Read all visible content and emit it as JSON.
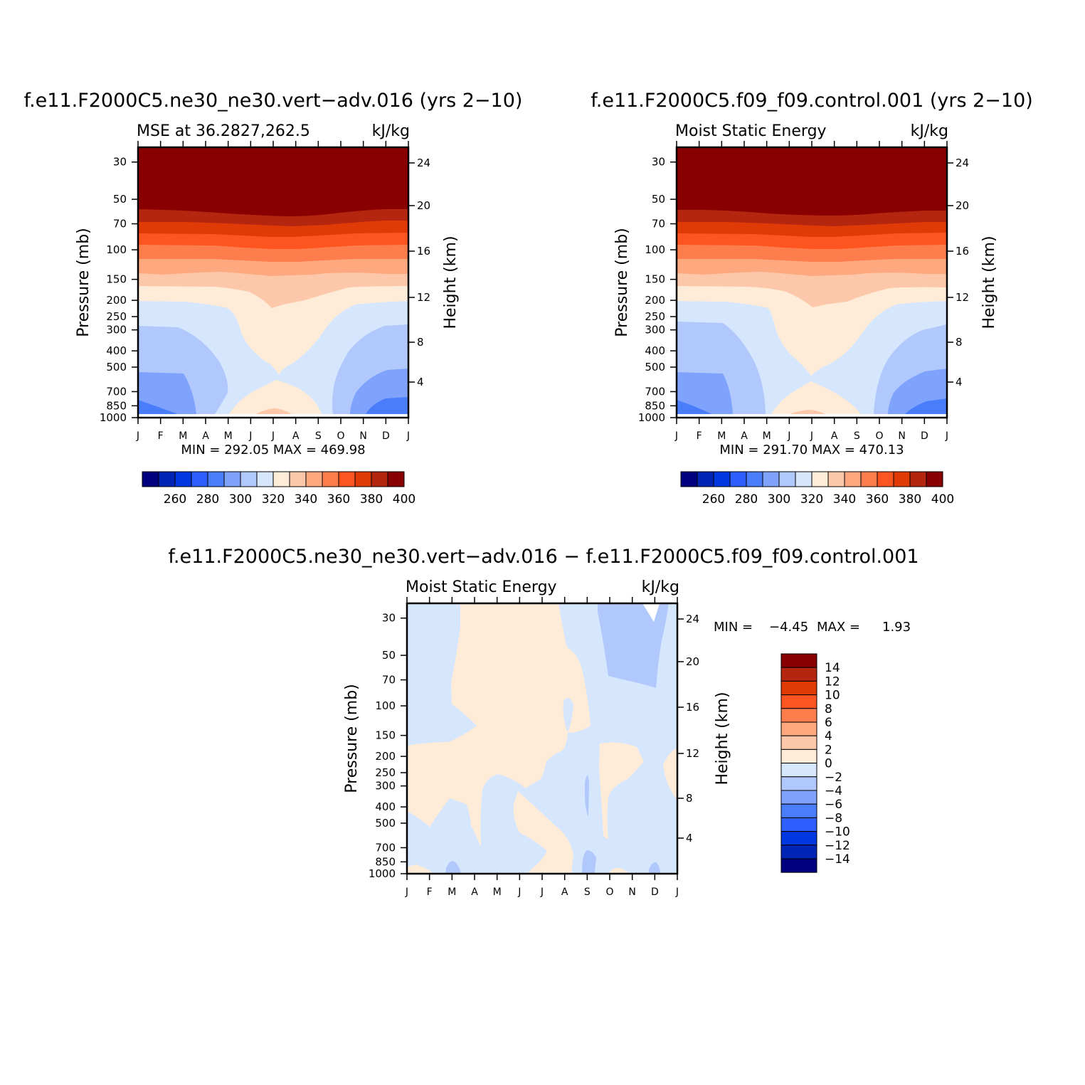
{
  "palettes": {
    "mse": [
      "#00007f",
      "#0024b4",
      "#0038e0",
      "#2d5fff",
      "#4a7dfc",
      "#7fa3fc",
      "#b0c8fc",
      "#d6e7fd",
      "#feebd8",
      "#fdc8aa",
      "#fda87f",
      "#fd7d4d",
      "#fd5420",
      "#e03a07",
      "#b52610",
      "#880000"
    ],
    "diff": [
      "#880000",
      "#b52610",
      "#e03a07",
      "#fd5420",
      "#fd7d4d",
      "#fda87f",
      "#fdc8aa",
      "#feebd8",
      "#d6e7fd",
      "#b0c8fc",
      "#7fa3fc",
      "#4a7dfc",
      "#2d5fff",
      "#0038e0",
      "#0024b4",
      "#00007f"
    ]
  },
  "months": [
    "J",
    "F",
    "M",
    "A",
    "M",
    "J",
    "J",
    "A",
    "S",
    "O",
    "N",
    "D",
    "J"
  ],
  "chart_data": [
    {
      "type": "heatmap",
      "title": "f.e11.F2000C5.ne30_ne30.vert−adv.016 (yrs 2−10)",
      "subtitle_left": "MSE at 36.2827,262.5",
      "subtitle_right": "kJ/kg",
      "ylabel": "Pressure (mb)",
      "ylabel_right": "Height (km)",
      "pressure_ticks": [
        "30",
        "50",
        "70",
        "100",
        "150",
        "200",
        "250",
        "300",
        "400",
        "500",
        "700",
        "850",
        "1000"
      ],
      "height_ticks": [
        "24",
        "20",
        "16",
        "12",
        "8",
        "4"
      ],
      "stats": "MIN = 292.05 MAX = 469.98",
      "colorbar_labels": [
        "260",
        "280",
        "300",
        "320",
        "340",
        "360",
        "380",
        "400"
      ],
      "levels": [
        250,
        260,
        270,
        280,
        290,
        300,
        310,
        320,
        330,
        340,
        350,
        360,
        370,
        380,
        390,
        400
      ]
    },
    {
      "type": "heatmap",
      "title": "f.e11.F2000C5.f09_f09.control.001 (yrs 2−10)",
      "subtitle_left": "Moist Static Energy",
      "subtitle_right": "kJ/kg",
      "ylabel": "Pressure (mb)",
      "ylabel_right": "Height (km)",
      "pressure_ticks": [
        "30",
        "50",
        "70",
        "100",
        "150",
        "200",
        "250",
        "300",
        "400",
        "500",
        "700",
        "850",
        "1000"
      ],
      "height_ticks": [
        "24",
        "20",
        "16",
        "12",
        "8",
        "4"
      ],
      "stats": "MIN = 291.70 MAX = 470.13",
      "colorbar_labels": [
        "260",
        "280",
        "300",
        "320",
        "340",
        "360",
        "380",
        "400"
      ],
      "levels": [
        250,
        260,
        270,
        280,
        290,
        300,
        310,
        320,
        330,
        340,
        350,
        360,
        370,
        380,
        390,
        400
      ]
    },
    {
      "type": "heatmap",
      "title": "f.e11.F2000C5.ne30_ne30.vert−adv.016 − f.e11.F2000C5.f09_f09.control.001",
      "subtitle_left": "Moist Static Energy",
      "subtitle_right": "kJ/kg",
      "ylabel": "Pressure (mb)",
      "ylabel_right": "Height (km)",
      "pressure_ticks": [
        "30",
        "50",
        "70",
        "100",
        "150",
        "200",
        "250",
        "300",
        "400",
        "500",
        "700",
        "850",
        "1000"
      ],
      "height_ticks": [
        "24",
        "20",
        "16",
        "12",
        "8",
        "4"
      ],
      "stats_min_label": "MIN =",
      "stats_min": "−4.45",
      "stats_max_label": "MAX =",
      "stats_max": "1.93",
      "colorbar_labels": [
        "14",
        "12",
        "10",
        "8",
        "6",
        "4",
        "2",
        "0",
        "−2",
        "−4",
        "−6",
        "−8",
        "−10",
        "−12",
        "−14"
      ],
      "levels": [
        14,
        12,
        10,
        8,
        6,
        4,
        2,
        0,
        -2,
        -4,
        -6,
        -8,
        -10,
        -12,
        -14
      ]
    }
  ]
}
